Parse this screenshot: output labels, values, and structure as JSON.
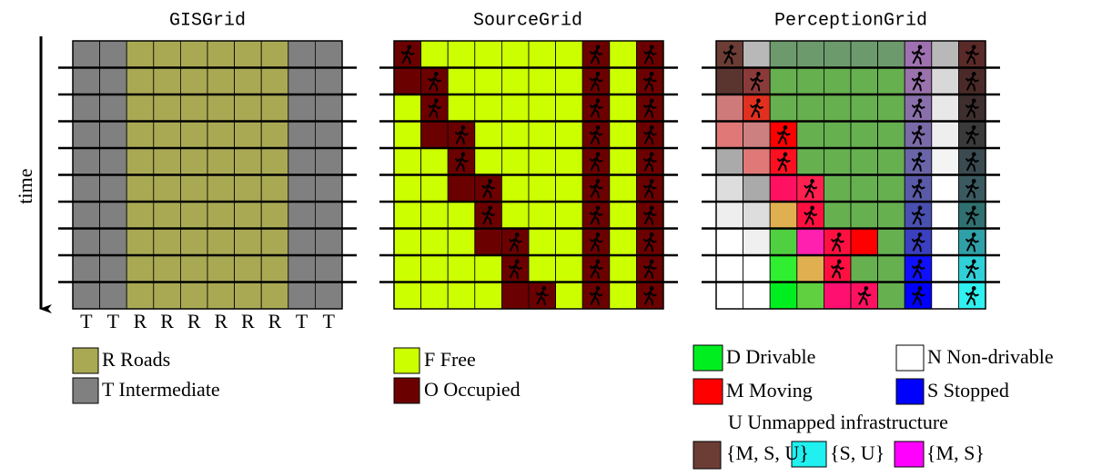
{
  "grids": [
    {
      "title": "GISGrid",
      "column_labels": [
        "T",
        "T",
        "R",
        "R",
        "R",
        "R",
        "R",
        "R",
        "T",
        "T"
      ]
    },
    {
      "title": "SourceGrid"
    },
    {
      "title": "PerceptionGrid"
    }
  ],
  "axis_label": "time",
  "legend": {
    "gis": [
      "R Roads",
      "T Intermediate"
    ],
    "source": [
      "F Free",
      "O Occupied"
    ],
    "perception": [
      "D Drivable",
      "N Non-drivable",
      "M Moving",
      "S Stopped",
      "U Unmapped infrastructure"
    ],
    "sets": [
      "{M, S, U}",
      "{S, U}",
      "{M,  S}"
    ]
  }
}
